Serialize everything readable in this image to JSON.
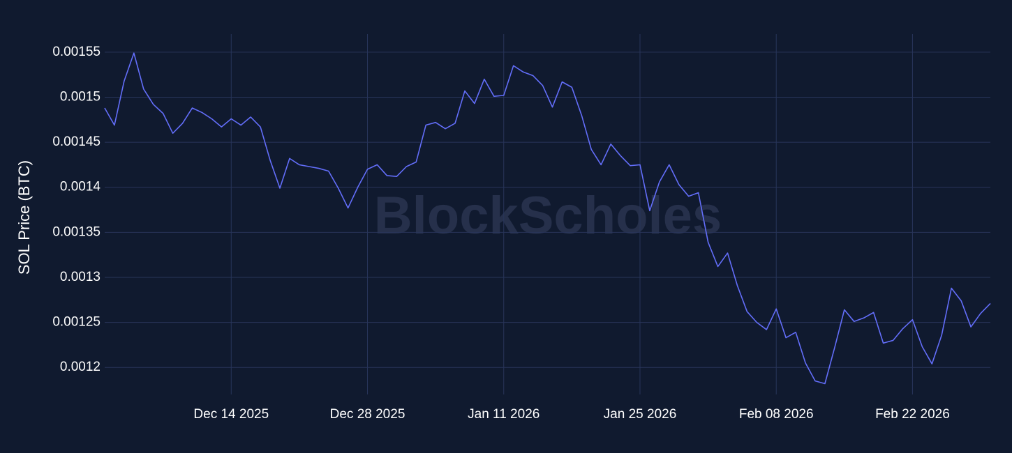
{
  "chart_data": {
    "type": "line",
    "watermark": "BlockScholes",
    "y_label": "SOL Price (BTC)",
    "x": [
      "2025-12-01",
      "2025-12-02",
      "2025-12-03",
      "2025-12-04",
      "2025-12-05",
      "2025-12-06",
      "2025-12-07",
      "2025-12-08",
      "2025-12-09",
      "2025-12-10",
      "2025-12-11",
      "2025-12-12",
      "2025-12-13",
      "2025-12-14",
      "2025-12-15",
      "2025-12-16",
      "2025-12-17",
      "2025-12-18",
      "2025-12-19",
      "2025-12-20",
      "2025-12-21",
      "2025-12-22",
      "2025-12-23",
      "2025-12-24",
      "2025-12-25",
      "2025-12-26",
      "2025-12-27",
      "2025-12-28",
      "2025-12-29",
      "2025-12-30",
      "2025-12-31",
      "2026-01-01",
      "2026-01-02",
      "2026-01-03",
      "2026-01-04",
      "2026-01-05",
      "2026-01-06",
      "2026-01-07",
      "2026-01-08",
      "2026-01-09",
      "2026-01-10",
      "2026-01-11",
      "2026-01-12",
      "2026-01-13",
      "2026-01-14",
      "2026-01-15",
      "2026-01-16",
      "2026-01-17",
      "2026-01-18",
      "2026-01-19",
      "2026-01-20",
      "2026-01-21",
      "2026-01-22",
      "2026-01-23",
      "2026-01-24",
      "2026-01-25",
      "2026-01-26",
      "2026-01-27",
      "2026-01-28",
      "2026-01-29",
      "2026-01-30",
      "2026-01-31",
      "2026-02-01",
      "2026-02-02",
      "2026-02-03",
      "2026-02-04",
      "2026-02-05",
      "2026-02-06",
      "2026-02-07",
      "2026-02-08",
      "2026-02-09",
      "2026-02-10",
      "2026-02-11",
      "2026-02-12",
      "2026-02-13",
      "2026-02-14",
      "2026-02-15",
      "2026-02-16",
      "2026-02-17",
      "2026-02-18",
      "2026-02-19",
      "2026-02-20",
      "2026-02-21",
      "2026-02-22",
      "2026-02-23",
      "2026-02-24",
      "2026-02-25",
      "2026-02-26",
      "2026-02-27",
      "2026-02-28",
      "2026-03-01",
      "2026-03-02"
    ],
    "series": [
      {
        "name": "SOL/BTC",
        "color": "#636efa",
        "values": [
          0.001488,
          0.001469,
          0.001518,
          0.001549,
          0.001509,
          0.001492,
          0.001482,
          0.00146,
          0.001471,
          0.001488,
          0.001483,
          0.001476,
          0.001467,
          0.001476,
          0.001469,
          0.001478,
          0.001467,
          0.00143,
          0.001399,
          0.001432,
          0.001425,
          0.001423,
          0.001421,
          0.001418,
          0.001399,
          0.001377,
          0.0014,
          0.00142,
          0.001425,
          0.001413,
          0.001412,
          0.001423,
          0.001428,
          0.001469,
          0.001472,
          0.001465,
          0.001471,
          0.001507,
          0.001493,
          0.00152,
          0.001501,
          0.001502,
          0.001535,
          0.001528,
          0.001524,
          0.001513,
          0.001489,
          0.001517,
          0.001511,
          0.00148,
          0.001442,
          0.001425,
          0.001448,
          0.001435,
          0.001424,
          0.001425,
          0.001374,
          0.001406,
          0.001425,
          0.001403,
          0.00139,
          0.001394,
          0.001339,
          0.001312,
          0.001327,
          0.001291,
          0.001262,
          0.00125,
          0.001242,
          0.001265,
          0.001233,
          0.001239,
          0.001205,
          0.001185,
          0.001182,
          0.001222,
          0.001264,
          0.001251,
          0.001255,
          0.001261,
          0.001227,
          0.00123,
          0.001243,
          0.001253,
          0.001223,
          0.001204,
          0.001236,
          0.001288,
          0.001274,
          0.001245,
          0.00126,
          0.001271
        ]
      }
    ],
    "xlim": [
      "2025-12-01",
      "2026-03-02"
    ],
    "xticks": [
      {
        "value": "2025-12-14",
        "label": "Dec 14 2025"
      },
      {
        "value": "2025-12-28",
        "label": "Dec 28 2025"
      },
      {
        "value": "2026-01-11",
        "label": "Jan 11 2026"
      },
      {
        "value": "2026-01-25",
        "label": "Jan 25 2026"
      },
      {
        "value": "2026-02-08",
        "label": "Feb 08 2026"
      },
      {
        "value": "2026-02-22",
        "label": "Feb 22 2026"
      }
    ],
    "ylim": [
      0.00117,
      0.00157
    ],
    "yticks": [
      0.0012,
      0.00125,
      0.0013,
      0.00135,
      0.0014,
      0.00145,
      0.0015,
      0.00155
    ],
    "grid": true
  }
}
